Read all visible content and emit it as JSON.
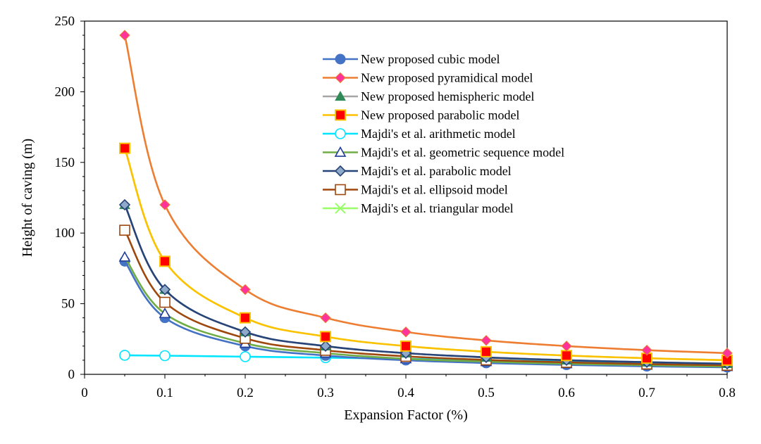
{
  "chart_data": {
    "type": "line",
    "title": "",
    "xlabel": "Expansion Factor (%)",
    "ylabel": "Height of caving (m)",
    "xlim": [
      0,
      0.8
    ],
    "ylim": [
      0,
      250
    ],
    "x_ticks": [
      "0",
      "0.1",
      "0.2",
      "0.3",
      "0.4",
      "0.5",
      "0.6",
      "0.7",
      "0.8"
    ],
    "y_ticks": [
      "0",
      "50",
      "100",
      "150",
      "200",
      "250"
    ],
    "grid": false,
    "legend_position": "top-right",
    "x": [
      0.05,
      0.1,
      0.2,
      0.3,
      0.4,
      0.5,
      0.6,
      0.7,
      0.8
    ],
    "series": [
      {
        "name": "New proposed cubic model",
        "color": "#4472C4",
        "marker": "circle-filled",
        "marker_color": "#4472C4",
        "values": [
          80,
          40,
          20,
          13.3,
          10,
          8,
          6.7,
          5.7,
          5
        ]
      },
      {
        "name": "New proposed pyramidical model",
        "color": "#ED7D31",
        "marker": "diamond-filled",
        "marker_color": "#FF3399",
        "values": [
          240,
          120,
          60,
          40,
          30,
          24,
          20,
          17.1,
          15
        ]
      },
      {
        "name": "New proposed hemispheric model",
        "color": "#A5A5A5",
        "marker": "triangle-filled",
        "marker_color": "#2E8B57",
        "values": [
          120,
          60,
          30,
          20,
          15,
          12,
          10,
          8.6,
          7.5
        ]
      },
      {
        "name": "New proposed parabolic model",
        "color": "#FFC000",
        "marker": "square-filled",
        "marker_color": "#FF0000",
        "values": [
          160,
          80,
          40,
          26.7,
          20,
          16,
          13.3,
          11.4,
          10
        ]
      },
      {
        "name": "Majdi's et al. arithmetic model",
        "color": "#00E5FF",
        "marker": "circle-open",
        "marker_color": "#00E5FF",
        "values": [
          13.5,
          13.2,
          12.5,
          11.8,
          11,
          10,
          9,
          8,
          7
        ]
      },
      {
        "name": "Majdi's et al. geometric sequence model",
        "color": "#70AD47",
        "marker": "triangle-open",
        "marker_color": "#1F3D99",
        "values": [
          83,
          43,
          22,
          15,
          11,
          9,
          7.5,
          6.5,
          5.5
        ]
      },
      {
        "name": "Majdi's et al. parabolic model",
        "color": "#264478",
        "marker": "diamond-open",
        "marker_color": "#264478",
        "values": [
          120,
          60,
          30,
          20,
          15,
          12,
          10,
          8.6,
          7.5
        ]
      },
      {
        "name": "Majdi's et al. ellipsoid model",
        "color": "#9E480E",
        "marker": "square-open",
        "marker_color": "#9E480E",
        "values": [
          102,
          51,
          25.5,
          17,
          12.75,
          10.2,
          8.5,
          7.3,
          6.4
        ]
      },
      {
        "name": "Majdi's et al. triangular model",
        "color": "#99FF66",
        "marker": "x",
        "marker_color": "#99FF66",
        "values": [
          160,
          80,
          40,
          26.7,
          20,
          16,
          13.3,
          11.4,
          10
        ]
      }
    ]
  }
}
